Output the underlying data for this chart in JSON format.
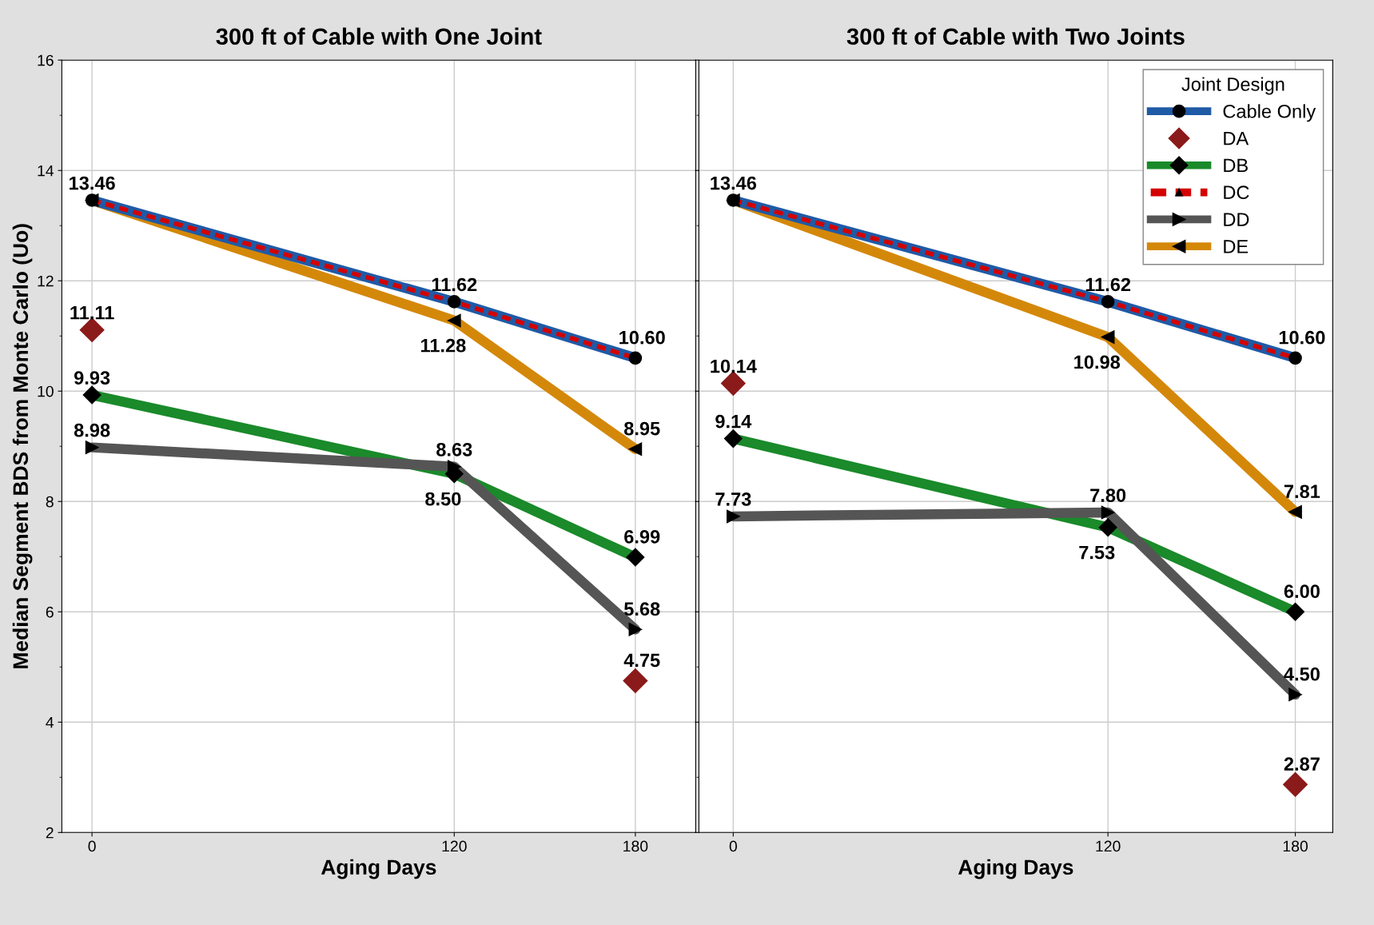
{
  "chart_data": [
    {
      "type": "line",
      "title": "300 ft of Cable with One Joint",
      "xlabel": "Aging Days",
      "ylabel": "Median Segment BDS from Monte Carlo (Uo)",
      "x": [
        0,
        120,
        180
      ],
      "xlim": [
        -10,
        200
      ],
      "xticks": [
        0,
        120,
        180
      ],
      "ylim": [
        2,
        16
      ],
      "yticks": [
        2,
        4,
        6,
        8,
        10,
        12,
        14,
        16
      ],
      "grid": true,
      "legend": false,
      "series": [
        {
          "color": "#1f5aa6",
          "marker": "circle",
          "line_style": "solid",
          "values": [
            13.46,
            11.62,
            10.6
          ],
          "value_labels": [
            "13.46",
            "11.62",
            "10.60"
          ]
        },
        {
          "color": "#8b1a1a",
          "type": "scatter",
          "marker": "diamond",
          "values": [
            11.11,
            null,
            4.75
          ],
          "value_labels": [
            "11.11",
            null,
            "4.75"
          ]
        },
        {
          "color": "#1a8a2a",
          "marker": "diamond",
          "line_style": "solid",
          "values": [
            9.93,
            8.5,
            6.99
          ],
          "value_labels": [
            "9.93",
            "8.50",
            "6.99"
          ]
        },
        {
          "color": "#d40000",
          "marker": "triangle",
          "line_style": "dashed",
          "values": [
            13.46,
            11.62,
            10.6
          ],
          "value_labels": [
            null,
            null,
            null
          ]
        },
        {
          "color": "#555555",
          "marker": "triangle-right",
          "line_style": "solid",
          "values": [
            8.98,
            8.63,
            5.68
          ],
          "value_labels": [
            "8.98",
            "8.63",
            "5.68"
          ]
        },
        {
          "color": "#d4880a",
          "marker": "triangle-left",
          "line_style": "solid",
          "values": [
            13.46,
            11.28,
            8.95
          ],
          "value_labels": [
            null,
            "11.28",
            "8.95"
          ]
        }
      ]
    },
    {
      "type": "line",
      "title": "300 ft of Cable with Two Joints",
      "xlabel": "Aging Days",
      "x": [
        0,
        120,
        180
      ],
      "xlim": [
        -11,
        192
      ],
      "xticks": [
        0,
        120,
        180
      ],
      "ylim": [
        2,
        16
      ],
      "yticks": [
        2,
        4,
        6,
        8,
        10,
        12,
        14,
        16
      ],
      "tick_labels": "x",
      "grid": true,
      "legend": "top right",
      "legend_title": "Joint Design",
      "series": [
        {
          "name": "Cable Only",
          "color": "#1f5aa6",
          "marker": "circle",
          "line_style": "solid",
          "values": [
            13.46,
            11.62,
            10.6
          ],
          "value_labels": [
            "13.46",
            "11.62",
            "10.60"
          ]
        },
        {
          "name": "DA",
          "color": "#8b1a1a",
          "type": "scatter",
          "marker": "diamond",
          "values": [
            10.14,
            null,
            2.87
          ],
          "value_labels": [
            "10.14",
            null,
            "2.87"
          ]
        },
        {
          "name": "DB",
          "color": "#1a8a2a",
          "marker": "diamond",
          "line_style": "solid",
          "values": [
            9.14,
            7.53,
            6.0
          ],
          "value_labels": [
            "9.14",
            "7.53",
            "6.00"
          ]
        },
        {
          "name": "DC",
          "color": "#d40000",
          "marker": "triangle",
          "line_style": "dashed",
          "values": [
            13.46,
            11.62,
            10.6
          ],
          "value_labels": [
            null,
            null,
            null
          ]
        },
        {
          "name": "DD",
          "color": "#555555",
          "marker": "triangle-right",
          "line_style": "solid",
          "values": [
            7.73,
            7.8,
            4.5
          ],
          "value_labels": [
            "7.73",
            "7.80",
            "4.50"
          ]
        },
        {
          "name": "DE",
          "color": "#d4880a",
          "marker": "triangle-left",
          "line_style": "solid",
          "values": [
            13.46,
            10.98,
            7.81
          ],
          "value_labels": [
            null,
            "10.98",
            "7.81"
          ]
        }
      ]
    }
  ]
}
